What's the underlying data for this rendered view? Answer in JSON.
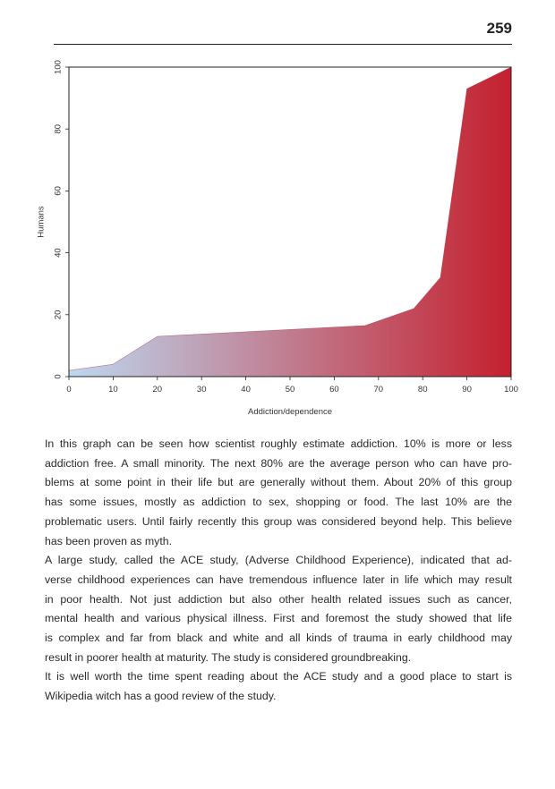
{
  "page": {
    "number": "259"
  },
  "chart_data": {
    "type": "area",
    "title": "",
    "xlabel": "Addiction/dependence",
    "ylabel": "Humans",
    "xlim": [
      0,
      100
    ],
    "ylim": [
      0,
      100
    ],
    "x_ticks": [
      "0",
      "10",
      "20",
      "30",
      "40",
      "50",
      "60",
      "70",
      "80",
      "90",
      "100"
    ],
    "y_ticks": [
      "0",
      "20",
      "40",
      "60",
      "80",
      "100"
    ],
    "grid": false,
    "legend": "none",
    "gradient_colors": [
      "#bcd8f0",
      "#c4202e"
    ],
    "x": [
      0,
      10,
      20,
      67,
      78,
      84,
      90,
      100
    ],
    "y": [
      2,
      4,
      13,
      16.5,
      22,
      32,
      93,
      100
    ]
  },
  "body": {
    "paragraphs": [
      [
        {
          "text": "In this graph can be seen how scientist roughly estimate addiction. 10% is more or less",
          "justify": true
        },
        {
          "text": "addiction free. A small minority. The next 80% are the average person who can have pro-",
          "justify": true
        },
        {
          "text": "blems at some point in their life but are generally without them. About 20% of this group",
          "justify": true
        },
        {
          "text": "has some issues, mostly as addiction to sex, shopping or food. The last 10% are the",
          "justify": true
        },
        {
          "text": "problematic users. Until fairly recently this group was considered beyond help. This believe",
          "justify": true
        },
        {
          "text": "has been proven as myth.",
          "justify": false
        }
      ],
      [
        {
          "text": "A large study, called the ACE study, (Adverse Childhood Experience), indicated that ad-",
          "justify": true
        },
        {
          "text": "verse childhood experiences can have tremendous influence later in life which may result",
          "justify": true
        },
        {
          "text": "in poor health. Not just addiction but also other health related issues such as cancer,",
          "justify": true
        },
        {
          "text": "mental health and various physical illness. First and foremost the study showed that life",
          "justify": true
        },
        {
          "text": "is complex and far from black and white and all kinds of trauma in early childhood may",
          "justify": true
        },
        {
          "text": "result in poorer health at maturity. The study is considered groundbreaking.",
          "justify": false
        }
      ],
      [
        {
          "text": "It is well worth the time spent reading about the ACE study and a good place to start is",
          "justify": true
        },
        {
          "text": "Wikipedia witch has a good review of the study.",
          "justify": false
        }
      ]
    ]
  }
}
